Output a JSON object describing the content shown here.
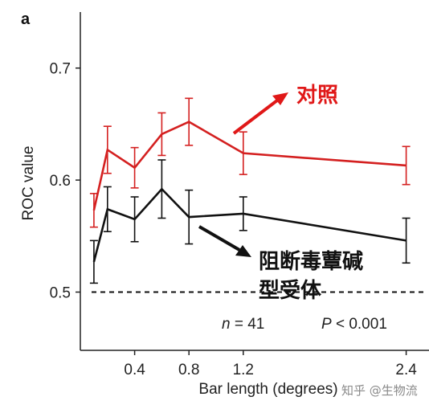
{
  "panel_letter": "a",
  "watermark": "知乎 @生物流",
  "chart_data": {
    "type": "line",
    "xlabel": "Bar length (degrees)",
    "ylabel": "ROC value",
    "xticks": [
      0.4,
      0.8,
      1.2,
      2.4
    ],
    "xtick_labels": [
      "0.4",
      "0.8",
      "1.2",
      "2.4"
    ],
    "yticks": [
      0.5,
      0.6,
      0.7
    ],
    "ytick_labels": [
      "0.5",
      "0.6",
      "0.7"
    ],
    "ylim": [
      0.448,
      0.75
    ],
    "reference_line": {
      "y": 0.5,
      "style": "dashed",
      "color": "#111111"
    },
    "series": [
      {
        "name": "对照",
        "color": "#d42020",
        "x": [
          0.1,
          0.2,
          0.4,
          0.6,
          0.8,
          1.2,
          2.4
        ],
        "y": [
          0.573,
          0.627,
          0.611,
          0.641,
          0.652,
          0.624,
          0.613
        ],
        "err": [
          0.015,
          0.021,
          0.018,
          0.019,
          0.021,
          0.019,
          0.017
        ]
      },
      {
        "name": "阻断毒蕈碱型受体",
        "color": "#111111",
        "x": [
          0.1,
          0.2,
          0.4,
          0.6,
          0.8,
          1.2,
          2.4
        ],
        "y": [
          0.527,
          0.574,
          0.565,
          0.592,
          0.567,
          0.57,
          0.546
        ],
        "err": [
          0.019,
          0.02,
          0.02,
          0.026,
          0.024,
          0.015,
          0.02
        ]
      }
    ],
    "annotations": {
      "label_control": "对照",
      "label_blocker_line1": "阻断毒蕈碱型受体",
      "n_prefix": "n",
      "n_value": " = 41",
      "p_prefix": "P",
      "p_value": " < 0.001"
    }
  }
}
